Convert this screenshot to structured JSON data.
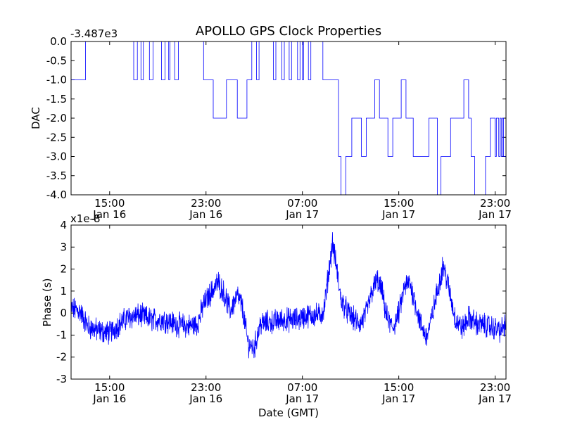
{
  "chart_data": [
    {
      "type": "line",
      "title": "APOLLO GPS Clock Properties",
      "ylabel": "DAC",
      "offset_text": "-3.487e3",
      "ylim": [
        -4.0,
        0.0
      ],
      "yticks": [
        "0.0",
        "-0.5",
        "-1.0",
        "-1.5",
        "-2.0",
        "-2.5",
        "-3.0",
        "-3.5",
        "-4.0"
      ],
      "xticks": [
        {
          "time": "15:00",
          "date": "Jan 16"
        },
        {
          "time": "23:00",
          "date": "Jan 16"
        },
        {
          "time": "07:00",
          "date": "Jan 17"
        },
        {
          "time": "15:00",
          "date": "Jan 17"
        },
        {
          "time": "23:00",
          "date": "Jan 17"
        }
      ],
      "xrange_hours": [
        11.8,
        47.9
      ],
      "series_color": "#0000ff",
      "note": "x values are hours since 00:00 Jan 16 (GMT); y values relative to offset",
      "segments": [
        [
          11.8,
          -1
        ],
        [
          13.0,
          0
        ],
        [
          16.0,
          0
        ],
        [
          17.0,
          -1
        ],
        [
          17.3,
          0
        ],
        [
          17.6,
          -1
        ],
        [
          17.8,
          0
        ],
        [
          18.3,
          -1
        ],
        [
          18.6,
          0
        ],
        [
          19.3,
          -1
        ],
        [
          19.6,
          0
        ],
        [
          19.9,
          -1
        ],
        [
          20.0,
          0
        ],
        [
          20.4,
          -1
        ],
        [
          20.7,
          0
        ],
        [
          22.8,
          -1
        ],
        [
          23.6,
          -2
        ],
        [
          24.7,
          -1
        ],
        [
          25.6,
          -2
        ],
        [
          26.4,
          -1
        ],
        [
          26.8,
          0
        ],
        [
          27.2,
          -1
        ],
        [
          27.4,
          0
        ],
        [
          28.6,
          -1
        ],
        [
          28.8,
          0
        ],
        [
          29.3,
          -1
        ],
        [
          29.5,
          0
        ],
        [
          29.9,
          -1
        ],
        [
          30.1,
          0
        ],
        [
          30.6,
          -1
        ],
        [
          30.8,
          0
        ],
        [
          31.0,
          -1
        ],
        [
          31.1,
          0
        ],
        [
          31.5,
          -1
        ],
        [
          31.7,
          0
        ],
        [
          32.7,
          -1
        ],
        [
          33.5,
          -1
        ],
        [
          34.0,
          -3
        ],
        [
          34.2,
          -4
        ],
        [
          34.6,
          -3
        ],
        [
          35.1,
          -2
        ],
        [
          35.9,
          -3
        ],
        [
          36.3,
          -2
        ],
        [
          37.0,
          -1
        ],
        [
          37.4,
          -2
        ],
        [
          38.1,
          -3
        ],
        [
          38.5,
          -2
        ],
        [
          39.2,
          -1
        ],
        [
          39.6,
          -2
        ],
        [
          40.2,
          -3
        ],
        [
          41.5,
          -2
        ],
        [
          42.2,
          -4
        ],
        [
          42.5,
          -3
        ],
        [
          43.3,
          -2
        ],
        [
          44.4,
          -1
        ],
        [
          44.8,
          -2
        ],
        [
          45.0,
          -3
        ],
        [
          45.3,
          -4
        ],
        [
          46.2,
          -3
        ],
        [
          46.6,
          -2
        ],
        [
          47.0,
          -3
        ],
        [
          47.1,
          -2
        ],
        [
          47.3,
          -3
        ],
        [
          47.4,
          -2
        ],
        [
          47.5,
          -3
        ],
        [
          47.6,
          -2
        ],
        [
          47.7,
          -3
        ],
        [
          47.9,
          -2
        ]
      ]
    },
    {
      "type": "line",
      "xlabel": "Date (GMT)",
      "ylabel": "Phase (s)",
      "offset_text": "x1e-8",
      "ylim": [
        -3,
        4
      ],
      "yticks": [
        "4",
        "3",
        "2",
        "1",
        "0",
        "-1",
        "-2",
        "-3"
      ],
      "xticks": [
        {
          "time": "15:00",
          "date": "Jan 16"
        },
        {
          "time": "23:00",
          "date": "Jan 16"
        },
        {
          "time": "07:00",
          "date": "Jan 17"
        },
        {
          "time": "15:00",
          "date": "Jan 17"
        },
        {
          "time": "23:00",
          "date": "Jan 17"
        }
      ],
      "xrange_hours": [
        11.8,
        47.9
      ],
      "series_color": "#0000ff",
      "anchors": [
        [
          11.8,
          0.2
        ],
        [
          12.5,
          0.1
        ],
        [
          13.2,
          -0.6
        ],
        [
          14.0,
          -0.8
        ],
        [
          15.0,
          -0.9
        ],
        [
          15.8,
          -0.5
        ],
        [
          16.5,
          -0.2
        ],
        [
          17.5,
          -0.1
        ],
        [
          18.5,
          -0.3
        ],
        [
          19.5,
          -0.3
        ],
        [
          20.5,
          -0.5
        ],
        [
          21.5,
          -0.6
        ],
        [
          22.3,
          -0.5
        ],
        [
          22.8,
          0.4
        ],
        [
          23.5,
          1.0
        ],
        [
          24.0,
          1.4
        ],
        [
          24.5,
          0.9
        ],
        [
          25.0,
          0.1
        ],
        [
          25.6,
          0.8
        ],
        [
          26.0,
          0.3
        ],
        [
          26.5,
          -1.4
        ],
        [
          27.0,
          -1.6
        ],
        [
          27.5,
          -0.5
        ],
        [
          28.5,
          -0.4
        ],
        [
          29.5,
          -0.3
        ],
        [
          30.5,
          -0.3
        ],
        [
          31.5,
          -0.1
        ],
        [
          32.5,
          -0.1
        ],
        [
          32.8,
          0.2
        ],
        [
          33.1,
          1.5
        ],
        [
          33.5,
          3.2
        ],
        [
          33.8,
          2.2
        ],
        [
          34.2,
          0.6
        ],
        [
          34.8,
          0.0
        ],
        [
          35.3,
          -0.3
        ],
        [
          35.8,
          -0.5
        ],
        [
          36.3,
          0.0
        ],
        [
          36.8,
          1.0
        ],
        [
          37.2,
          1.5
        ],
        [
          37.6,
          1.0
        ],
        [
          38.0,
          -0.2
        ],
        [
          38.5,
          -0.7
        ],
        [
          39.0,
          0.0
        ],
        [
          39.5,
          1.2
        ],
        [
          39.9,
          1.4
        ],
        [
          40.3,
          0.6
        ],
        [
          40.8,
          -0.5
        ],
        [
          41.3,
          -1.1
        ],
        [
          41.7,
          -0.3
        ],
        [
          42.2,
          1.0
        ],
        [
          42.7,
          2.2
        ],
        [
          43.2,
          1.0
        ],
        [
          43.7,
          -0.3
        ],
        [
          44.3,
          -0.7
        ],
        [
          44.8,
          -0.2
        ],
        [
          45.5,
          -0.5
        ],
        [
          46.5,
          -0.6
        ],
        [
          47.5,
          -0.8
        ],
        [
          47.9,
          -0.5
        ]
      ]
    }
  ]
}
